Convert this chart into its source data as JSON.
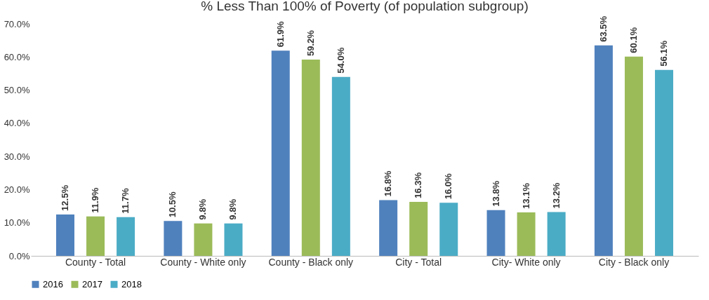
{
  "chart_data": {
    "type": "bar",
    "title": "% Less Than 100% of Poverty (of population subgroup)",
    "categories": [
      "County - Total",
      "County - White only",
      "County - Black only",
      "City - Total",
      "City- White only",
      "City - Black only"
    ],
    "series": [
      {
        "name": "2016",
        "color": "#4f81bd",
        "values": [
          12.5,
          10.5,
          61.9,
          16.8,
          13.8,
          63.5
        ],
        "value_labels": [
          "12.5%",
          "10.5%",
          "61.9%",
          "16.8%",
          "13.8%",
          "63.5%"
        ]
      },
      {
        "name": "2017",
        "color": "#9bbb59",
        "values": [
          11.9,
          9.8,
          59.2,
          16.3,
          13.1,
          60.1
        ],
        "value_labels": [
          "11.9%",
          "9.8%",
          "59.2%",
          "16.3%",
          "13.1%",
          "60.1%"
        ]
      },
      {
        "name": "2018",
        "color": "#4bacc6",
        "values": [
          11.7,
          9.8,
          54.0,
          16.0,
          13.2,
          56.1
        ],
        "value_labels": [
          "11.7%",
          "9.8%",
          "54.0%",
          "16.0%",
          "13.2%",
          "56.1%"
        ]
      }
    ],
    "ylim": [
      0,
      70
    ],
    "yticks": [
      {
        "value": 0,
        "label": "0.0%"
      },
      {
        "value": 10,
        "label": "10.0%"
      },
      {
        "value": 20,
        "label": "20.0%"
      },
      {
        "value": 30,
        "label": "30.0%"
      },
      {
        "value": 40,
        "label": "40.0%"
      },
      {
        "value": 50,
        "label": "50.0%"
      },
      {
        "value": 60,
        "label": "60.0%"
      },
      {
        "value": 70,
        "label": "70.0%"
      }
    ],
    "grid": false,
    "legend": "bottom"
  }
}
